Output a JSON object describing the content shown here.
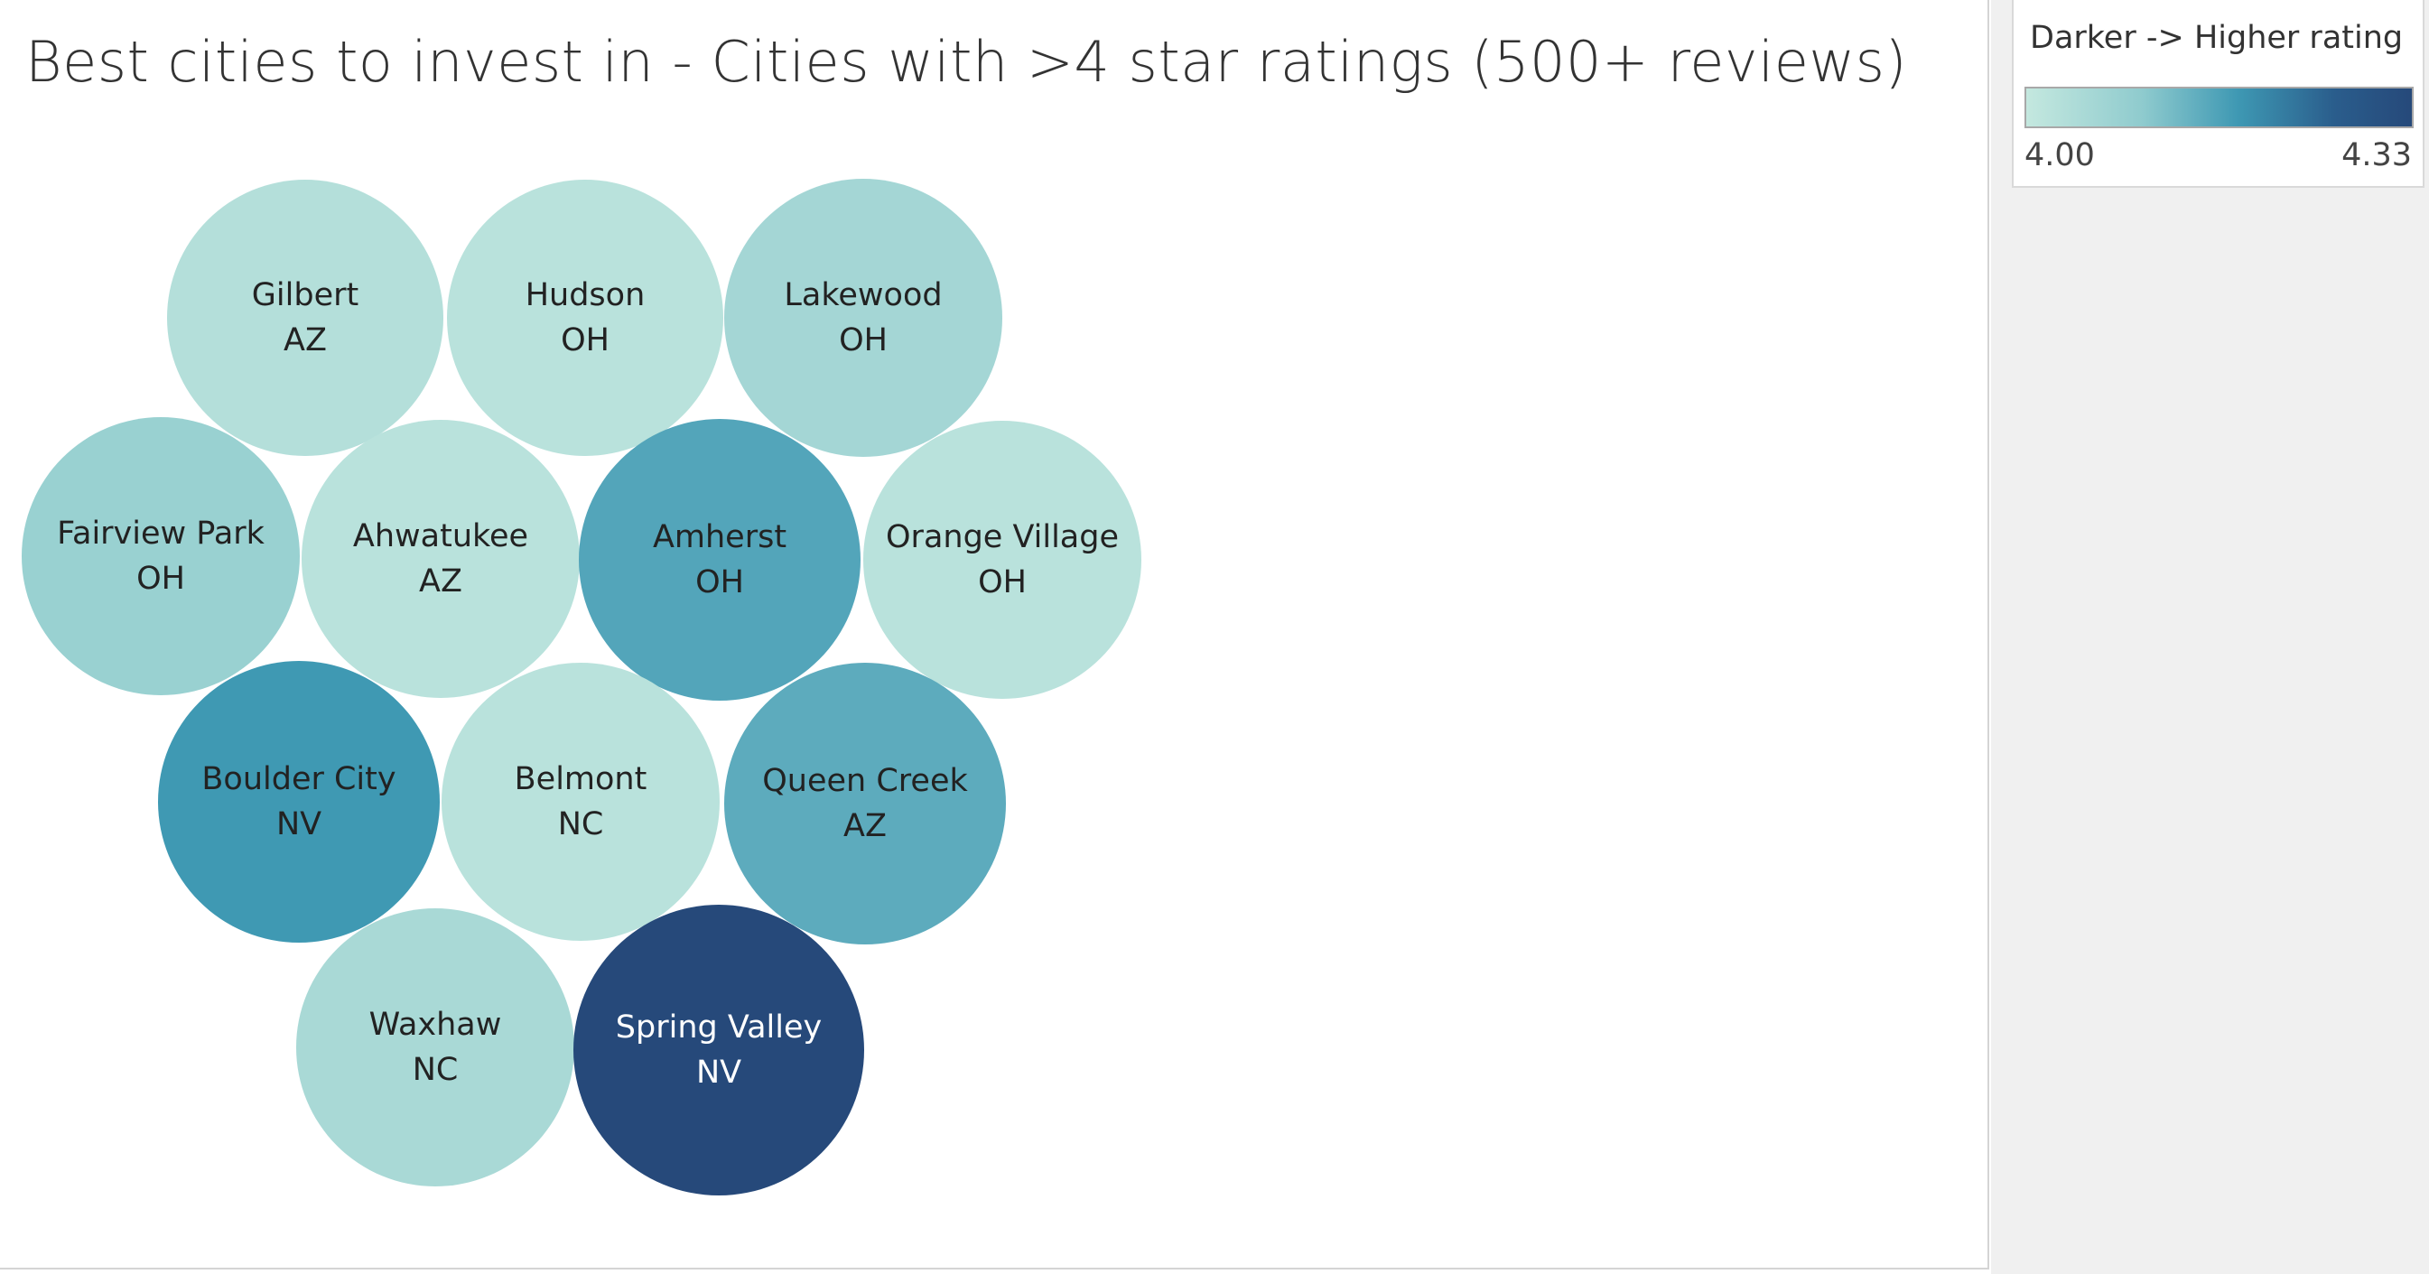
{
  "chart_data": {
    "type": "bubble",
    "title": "Best cities to invest in - Cities with >4 star ratings (500+ reviews)",
    "color_legend": {
      "title": "Darker -> Higher rating",
      "min_label": "4.00",
      "max_label": "4.33",
      "min": 4.0,
      "max": 4.33,
      "colors": [
        "#c4e8df",
        "#8fcbce",
        "#3e98b3",
        "#26497a"
      ]
    },
    "points": [
      {
        "city": "Gilbert",
        "state": "AZ",
        "rating": 4.03
      },
      {
        "city": "Hudson",
        "state": "OH",
        "rating": 4.02
      },
      {
        "city": "Lakewood",
        "state": "OH",
        "rating": 4.06
      },
      {
        "city": "Fairview Park",
        "state": "OH",
        "rating": 4.08
      },
      {
        "city": "Ahwatukee",
        "state": "AZ",
        "rating": 4.02
      },
      {
        "city": "Amherst",
        "state": "OH",
        "rating": 4.16
      },
      {
        "city": "Orange Village",
        "state": "OH",
        "rating": 4.02
      },
      {
        "city": "Boulder City",
        "state": "NV",
        "rating": 4.18
      },
      {
        "city": "Belmont",
        "state": "NC",
        "rating": 4.02
      },
      {
        "city": "Queen Creek",
        "state": "AZ",
        "rating": 4.15
      },
      {
        "city": "Waxhaw",
        "state": "NC",
        "rating": 4.05
      },
      {
        "city": "Spring Valley",
        "state": "NV",
        "rating": 4.33
      }
    ]
  }
}
